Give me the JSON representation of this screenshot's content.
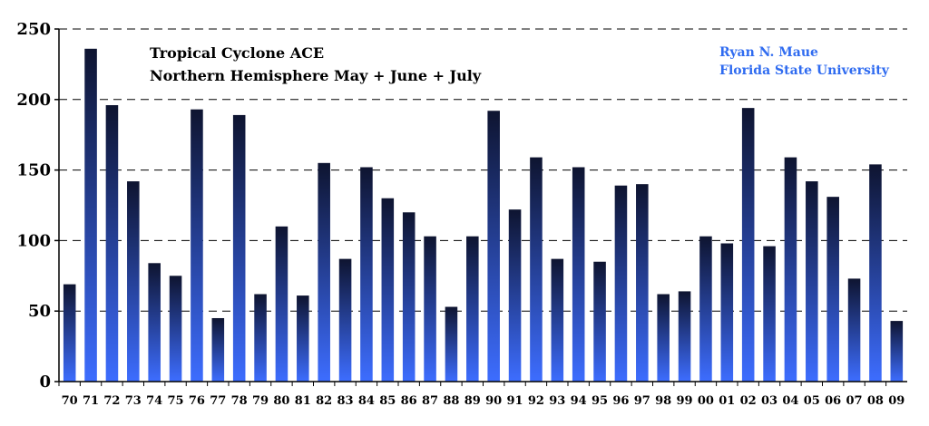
{
  "chart_data": {
    "type": "bar",
    "title_lines": [
      "Tropical Cyclone ACE",
      "Northern Hemisphere May + June + July"
    ],
    "credit_lines": [
      "Ryan N. Maue",
      "Florida State University"
    ],
    "xlabel": "",
    "ylabel": "",
    "ylim": [
      0,
      250
    ],
    "yticks": [
      0,
      50,
      100,
      150,
      200,
      250
    ],
    "grid": "horizontal dashed",
    "colors": {
      "bar_top": "#0e1430",
      "bar_bottom": "#3d6dff",
      "credit": "#2f6bf0",
      "grid": "#000000"
    },
    "categories": [
      "70",
      "71",
      "72",
      "73",
      "74",
      "75",
      "76",
      "77",
      "78",
      "79",
      "80",
      "81",
      "82",
      "83",
      "84",
      "85",
      "86",
      "87",
      "88",
      "89",
      "90",
      "91",
      "92",
      "93",
      "94",
      "95",
      "96",
      "97",
      "98",
      "99",
      "00",
      "01",
      "02",
      "03",
      "04",
      "05",
      "06",
      "07",
      "08",
      "09"
    ],
    "values": [
      69,
      236,
      196,
      142,
      84,
      75,
      193,
      45,
      189,
      62,
      110,
      61,
      155,
      87,
      152,
      130,
      120,
      103,
      53,
      103,
      192,
      122,
      159,
      87,
      152,
      85,
      139,
      140,
      62,
      64,
      103,
      98,
      194,
      96,
      159,
      142,
      131,
      73,
      154,
      43
    ]
  }
}
